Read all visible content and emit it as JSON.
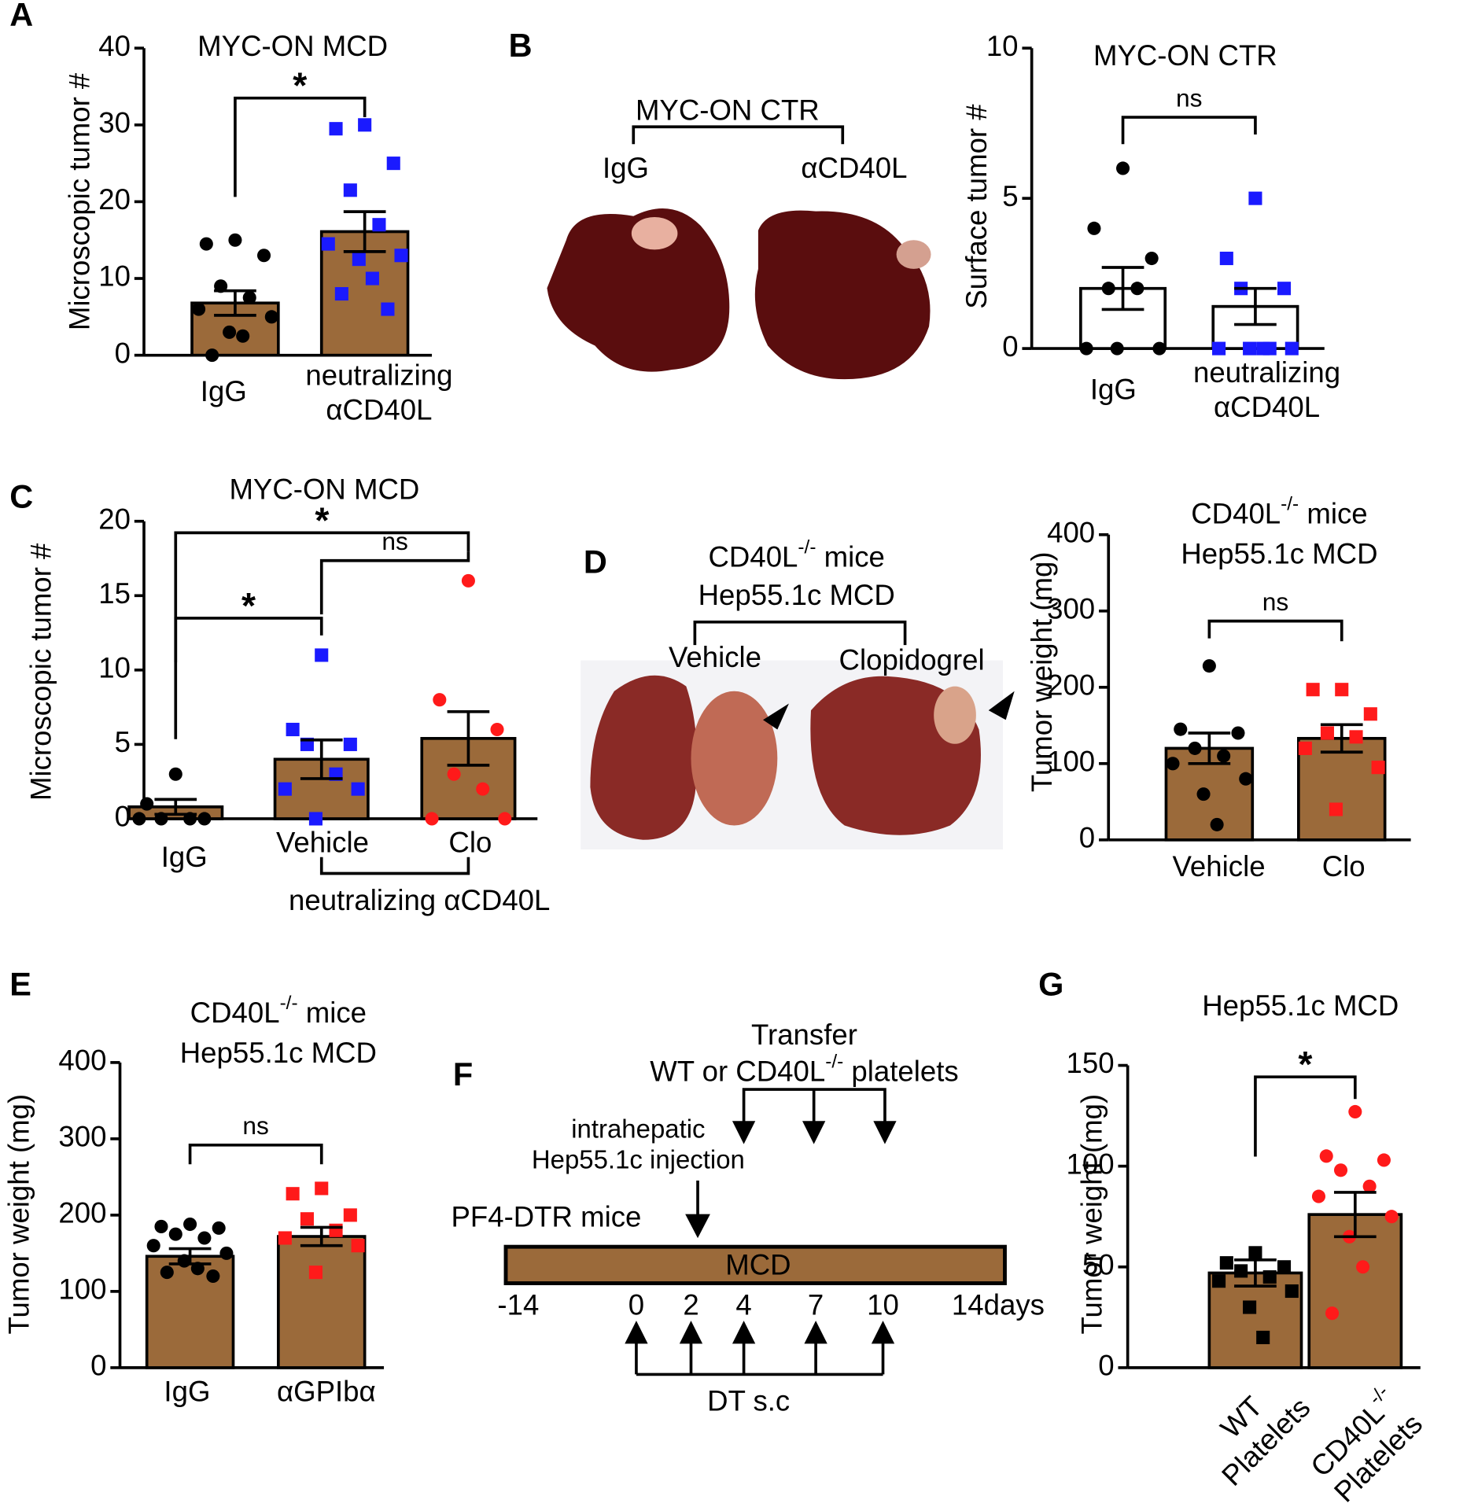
{
  "letters": [
    "A",
    "B",
    "C",
    "D",
    "E",
    "F",
    "G"
  ],
  "photo_B": {
    "title": "MYC-ON CTR",
    "left": "IgG",
    "right": "αCD40L"
  },
  "photo_D": {
    "title": "CD40L-/- mice\nHep55.1c MCD",
    "left": "Vehicle",
    "right": "Clopidogrel"
  },
  "diagram_F": {
    "transfer": "Transfer\nWT or CD40L-/- platelets",
    "injection": "intrahepatic\nHep55.1c injection",
    "mice": "PF4-DTR mice",
    "diet": "MCD",
    "timeline": [
      "-14",
      "0",
      "2",
      "4",
      "7",
      "10",
      "14days"
    ],
    "dt": "DT s.c"
  },
  "chart_data": [
    {
      "type": "bar",
      "title": "MYC-ON MCD",
      "y_label": "Microscopic tumor #",
      "categories": [
        "IgG",
        "neutralizing\nαCD40L"
      ],
      "values": [
        6.8,
        16.1
      ],
      "errors": [
        1.6,
        2.6
      ],
      "points": [
        [
          15,
          14.5,
          13,
          9,
          7.5,
          6,
          5,
          3,
          2.5,
          0
        ],
        [
          30,
          29.5,
          25,
          21.5,
          17,
          14.5,
          13,
          12.5,
          10,
          8,
          6
        ]
      ],
      "point_color": [
        "#000000",
        "#1a1aff"
      ],
      "point_shape": [
        "circle",
        "square"
      ],
      "bar_color": "#9b6a3a",
      "ylim": [
        0,
        40
      ],
      "yticks": [
        0,
        10,
        20,
        30,
        40
      ],
      "annotations": [
        {
          "text": "*",
          "between": [
            "IgG",
            "neutralizing\nαCD40L"
          ]
        }
      ]
    },
    {
      "type": "bar",
      "title": "MYC-ON CTR",
      "y_label": "Surface tumor #",
      "categories": [
        "IgG",
        "neutralizing\nαCD40L"
      ],
      "values": [
        2.0,
        1.4
      ],
      "errors": [
        0.7,
        0.6
      ],
      "points": [
        [
          6,
          4,
          3,
          2,
          2,
          0,
          0,
          0
        ],
        [
          5,
          3,
          2,
          2,
          0,
          0,
          0,
          0,
          0
        ]
      ],
      "point_color": [
        "#000000",
        "#1a1aff"
      ],
      "point_shape": [
        "circle",
        "square"
      ],
      "bar_color": "#ffffff",
      "ylim": [
        0,
        10
      ],
      "yticks": [
        0,
        5,
        10
      ],
      "annotations": [
        {
          "text": "ns",
          "between": [
            "IgG",
            "neutralizing\nαCD40L"
          ]
        }
      ]
    },
    {
      "type": "bar",
      "title": "MYC-ON MCD",
      "y_label": "Microscopic tumor #",
      "categories": [
        "IgG",
        "Vehicle",
        "Clo"
      ],
      "values": [
        0.8,
        4.0,
        5.4
      ],
      "errors": [
        0.5,
        1.3,
        1.8
      ],
      "points": [
        [
          3,
          1,
          0,
          0,
          0,
          0
        ],
        [
          11,
          6,
          5,
          5,
          3,
          2,
          2,
          0
        ],
        [
          16,
          8,
          6,
          3,
          2,
          0,
          0
        ]
      ],
      "point_color": [
        "#000000",
        "#1a1aff",
        "#ff1a1a"
      ],
      "point_shape": [
        "circle",
        "square",
        "circle"
      ],
      "bar_color": "#9b6a3a",
      "ylim": [
        0,
        20
      ],
      "yticks": [
        0,
        5,
        10,
        15,
        20
      ],
      "group": {
        "label": "neutralizing αCD40L",
        "categories": [
          "Vehicle",
          "Clo"
        ]
      },
      "annotations": [
        {
          "text": "*",
          "between": [
            "IgG",
            "Clo"
          ]
        },
        {
          "text": "ns",
          "between": [
            "Vehicle",
            "Clo"
          ]
        },
        {
          "text": "*",
          "between": [
            "IgG",
            "Vehicle"
          ]
        }
      ]
    },
    {
      "type": "bar",
      "title": "CD40L-/- mice\nHep55.1c MCD",
      "y_label": "Tumor weight (mg)",
      "categories": [
        "Vehicle",
        "Clo"
      ],
      "values": [
        120,
        133
      ],
      "errors": [
        20,
        18
      ],
      "points": [
        [
          228,
          145,
          140,
          120,
          110,
          100,
          80,
          60,
          20
        ],
        [
          197,
          197,
          165,
          140,
          135,
          120,
          95,
          40
        ]
      ],
      "point_color": [
        "#000000",
        "#ff1a1a"
      ],
      "point_shape": [
        "circle",
        "square"
      ],
      "bar_color": "#9b6a3a",
      "ylim": [
        0,
        400
      ],
      "yticks": [
        0,
        100,
        200,
        300,
        400
      ],
      "annotations": [
        {
          "text": "ns",
          "between": [
            "Vehicle",
            "Clo"
          ]
        }
      ]
    },
    {
      "type": "bar",
      "title": "CD40L-/- mice\nHep55.1c MCD",
      "y_label": "Tumor weight (mg)",
      "categories": [
        "IgG",
        "αGPIbα"
      ],
      "values": [
        146,
        172
      ],
      "errors": [
        10,
        12
      ],
      "points": [
        [
          188,
          185,
          183,
          175,
          170,
          160,
          150,
          140,
          130,
          125,
          120
        ],
        [
          235,
          228,
          200,
          195,
          180,
          170,
          160,
          125
        ]
      ],
      "point_color": [
        "#000000",
        "#ff1a1a"
      ],
      "point_shape": [
        "circle",
        "square"
      ],
      "bar_color": "#9b6a3a",
      "ylim": [
        0,
        400
      ],
      "yticks": [
        0,
        100,
        200,
        300,
        400
      ],
      "annotations": [
        {
          "text": "ns",
          "between": [
            "IgG",
            "αGPIbα"
          ]
        }
      ]
    },
    {
      "type": "bar",
      "title": "Hep55.1c MCD",
      "y_label": "Tumor weight (mg)",
      "categories": [
        "WT\nPlatelets",
        "CD40L-/-\nPlatelets"
      ],
      "values": [
        47,
        76
      ],
      "errors": [
        6.5,
        11
      ],
      "points": [
        [
          57,
          52,
          50,
          48,
          45,
          43,
          38,
          30,
          15
        ],
        [
          127,
          105,
          103,
          98,
          90,
          85,
          75,
          65,
          50,
          27
        ]
      ],
      "point_color": [
        "#000000",
        "#ff1a1a"
      ],
      "point_shape": [
        "square",
        "circle"
      ],
      "bar_color": "#9b6a3a",
      "ylim": [
        0,
        150
      ],
      "yticks": [
        0,
        50,
        100,
        150
      ],
      "annotations": [
        {
          "text": "*",
          "between": [
            "WT\nPlatelets",
            "CD40L-/-\nPlatelets"
          ]
        }
      ]
    }
  ]
}
